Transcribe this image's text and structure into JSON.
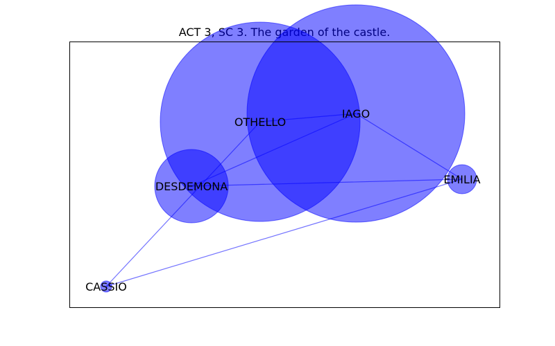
{
  "title": "ACT 3, SC 3. The garden of the castle.",
  "colors": {
    "node": "#0000ff",
    "edge": "#0000ff",
    "frame": "#000000",
    "background": "#ffffff"
  },
  "nodes": [
    {
      "id": "othello",
      "label": "OTHELLO"
    },
    {
      "id": "iago",
      "label": "IAGO"
    },
    {
      "id": "desdemona",
      "label": "DESDEMONA"
    },
    {
      "id": "emilia",
      "label": "EMILIA"
    },
    {
      "id": "cassio",
      "label": "CASSIO"
    }
  ],
  "edges": [
    [
      "othello",
      "iago"
    ],
    [
      "othello",
      "cassio"
    ],
    [
      "iago",
      "desdemona"
    ],
    [
      "iago",
      "emilia"
    ],
    [
      "desdemona",
      "emilia"
    ],
    [
      "emilia",
      "cassio"
    ]
  ]
}
